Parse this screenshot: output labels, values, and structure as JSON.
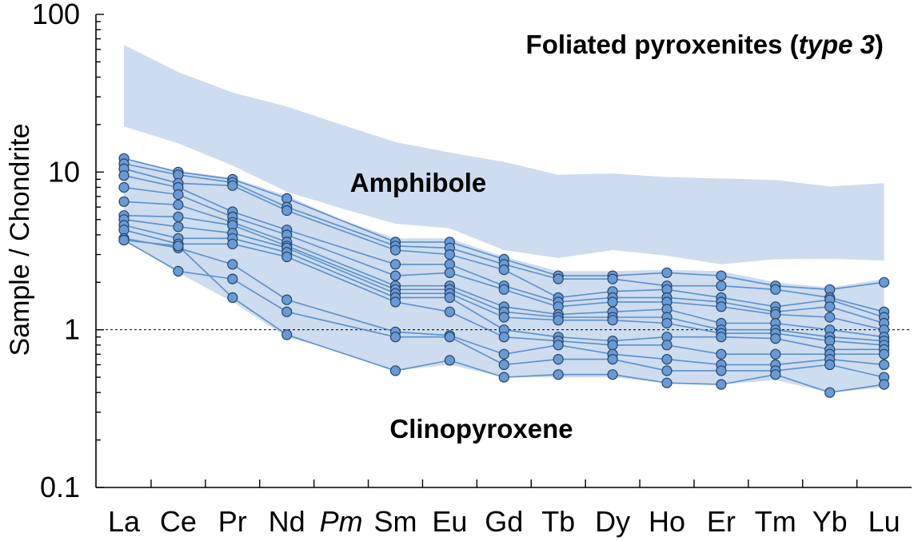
{
  "chart_data": {
    "type": "line",
    "title": "Foliated pyroxenites (",
    "title_italic": "type 3",
    "title_end": ")",
    "ylabel": "Sample / Chondrite",
    "xlabel": "",
    "yscale": "log",
    "ylim": [
      0.1,
      100
    ],
    "yticks": [
      "0.1",
      "1",
      "10",
      "100"
    ],
    "reference_line": 1,
    "categories": [
      "La",
      "Ce",
      "Pr",
      "Nd",
      "Pm",
      "Sm",
      "Eu",
      "Gd",
      "Tb",
      "Dy",
      "Ho",
      "Er",
      "Tm",
      "Yb",
      "Lu"
    ],
    "italic_categories": [
      "Pm"
    ],
    "annotations": [
      "Amphibole",
      "Clinopyroxene"
    ],
    "colors": {
      "band": "#cddcee",
      "series": "#5b8fcc",
      "marker_fill": "#6a9ad4",
      "marker_edge": "#23436b"
    },
    "bands": [
      {
        "name": "Amphibole",
        "upper": [
          64,
          43,
          32,
          26,
          20,
          15.5,
          13.3,
          11.6,
          9.6,
          9.8,
          9.3,
          9.1,
          8.9,
          8.1,
          8.5
        ],
        "lower": [
          19.5,
          15.2,
          11,
          7.5,
          5.9,
          4.7,
          4.4,
          3.2,
          2.85,
          3.2,
          2.95,
          2.6,
          2.8,
          2.82,
          2.75
        ]
      },
      {
        "name": "Clinopyroxene",
        "upper": [
          12,
          10.2,
          9.2,
          7.1,
          5.0,
          3.8,
          3.8,
          2.9,
          2.35,
          2.35,
          2.4,
          2.35,
          2.0,
          1.85,
          2.1
        ],
        "lower": [
          3.7,
          2.3,
          1.5,
          0.9,
          0.72,
          0.55,
          0.6,
          0.5,
          0.5,
          0.5,
          0.46,
          0.45,
          0.48,
          0.4,
          0.43
        ]
      }
    ],
    "series": [
      {
        "values": [
          12.2,
          10.0,
          9.0,
          6.8,
          null,
          3.6,
          3.6,
          2.8,
          2.2,
          2.2,
          2.3,
          2.2,
          1.9,
          1.8,
          2.0
        ]
      },
      {
        "values": [
          11.3,
          9.6,
          8.6,
          6.0,
          null,
          3.4,
          3.3,
          2.6,
          2.1,
          2.1,
          1.9,
          1.9,
          1.8,
          1.6,
          1.3
        ]
      },
      {
        "values": [
          10.5,
          8.5,
          8.2,
          5.7,
          null,
          3.2,
          3.0,
          2.4,
          1.6,
          1.75,
          1.8,
          1.6,
          1.4,
          1.55,
          1.2
        ]
      },
      {
        "values": [
          9.5,
          8.0,
          5.6,
          4.3,
          null,
          2.6,
          2.6,
          1.9,
          1.5,
          1.6,
          1.6,
          1.5,
          1.3,
          1.4,
          1.1
        ]
      },
      {
        "values": [
          8.0,
          7.2,
          5.2,
          4.0,
          null,
          2.2,
          2.3,
          1.8,
          1.4,
          1.5,
          1.5,
          1.4,
          1.25,
          1.2,
          1.0
        ]
      },
      {
        "values": [
          6.5,
          6.2,
          4.8,
          3.6,
          null,
          1.9,
          1.9,
          1.4,
          1.25,
          1.3,
          1.35,
          1.1,
          1.1,
          1.0,
          0.9
        ]
      },
      {
        "values": [
          5.3,
          5.2,
          4.6,
          3.4,
          null,
          1.8,
          1.8,
          1.3,
          1.2,
          1.2,
          1.2,
          1.0,
          1.0,
          0.9,
          0.85
        ]
      },
      {
        "values": [
          5.0,
          4.5,
          4.1,
          3.3,
          null,
          1.7,
          1.7,
          1.2,
          1.15,
          1.15,
          1.1,
          0.95,
          0.95,
          0.85,
          0.8
        ]
      },
      {
        "values": [
          4.6,
          3.8,
          3.8,
          3.1,
          null,
          1.6,
          1.6,
          1.0,
          0.9,
          0.85,
          0.9,
          0.9,
          0.88,
          0.75,
          0.75
        ]
      },
      {
        "values": [
          4.3,
          3.5,
          3.5,
          2.9,
          null,
          1.5,
          1.3,
          0.9,
          0.85,
          0.8,
          0.8,
          0.7,
          0.7,
          0.7,
          0.7
        ]
      },
      {
        "values": [
          3.8,
          3.3,
          2.6,
          1.55,
          null,
          0.97,
          0.92,
          0.7,
          0.8,
          0.7,
          0.65,
          0.6,
          0.6,
          0.65,
          0.6
        ]
      },
      {
        "values": [
          3.7,
          2.35,
          2.1,
          1.3,
          null,
          0.9,
          0.9,
          0.6,
          0.65,
          0.65,
          0.55,
          0.55,
          0.55,
          0.6,
          0.5
        ]
      },
      {
        "values": [
          3.7,
          3.4,
          1.6,
          0.93,
          null,
          0.55,
          0.64,
          0.5,
          0.52,
          0.52,
          0.46,
          0.45,
          0.52,
          0.4,
          0.45
        ]
      }
    ]
  }
}
